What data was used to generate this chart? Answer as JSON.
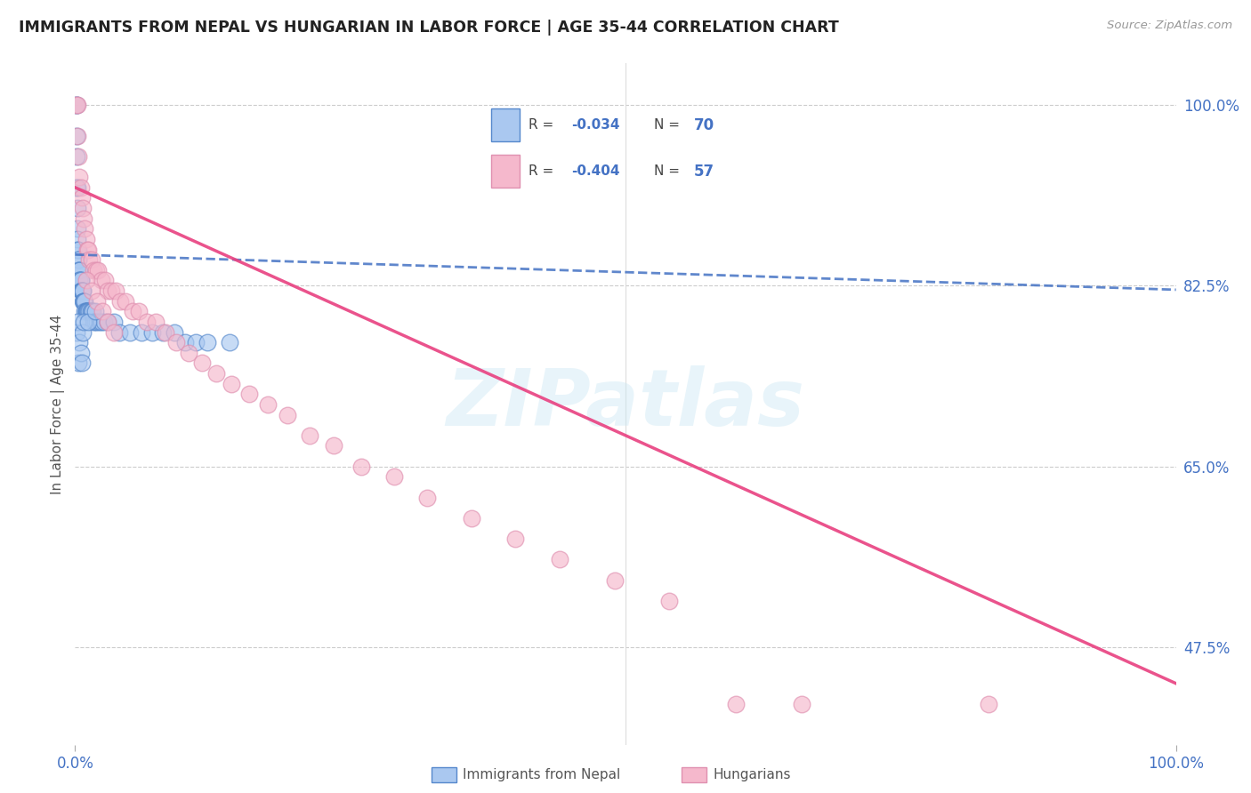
{
  "title": "IMMIGRANTS FROM NEPAL VS HUNGARIAN IN LABOR FORCE | AGE 35-44 CORRELATION CHART",
  "source": "Source: ZipAtlas.com",
  "ylabel": "In Labor Force | Age 35-44",
  "xlim": [
    0.0,
    1.0
  ],
  "ylim": [
    0.38,
    1.04
  ],
  "yticks": [
    0.475,
    0.65,
    0.825,
    1.0
  ],
  "ytick_labels": [
    "47.5%",
    "65.0%",
    "82.5%",
    "100.0%"
  ],
  "xtick_labels": [
    "0.0%",
    "100.0%"
  ],
  "xticks": [
    0.0,
    1.0
  ],
  "nepal_color": "#aac8f0",
  "hungarian_color": "#f5b8cc",
  "nepal_edge_color": "#5588cc",
  "hungarian_edge_color": "#e090b0",
  "nepal_line_color": "#4472c4",
  "hungarian_line_color": "#e84080",
  "watermark": "ZIPatlas",
  "nepal_x": [
    0.001,
    0.001,
    0.001,
    0.001,
    0.001,
    0.002,
    0.002,
    0.002,
    0.002,
    0.002,
    0.003,
    0.003,
    0.003,
    0.003,
    0.004,
    0.004,
    0.004,
    0.004,
    0.005,
    0.005,
    0.005,
    0.006,
    0.006,
    0.006,
    0.007,
    0.007,
    0.007,
    0.008,
    0.008,
    0.008,
    0.009,
    0.009,
    0.01,
    0.01,
    0.01,
    0.011,
    0.011,
    0.012,
    0.013,
    0.014,
    0.015,
    0.016,
    0.017,
    0.018,
    0.02,
    0.022,
    0.024,
    0.026,
    0.03,
    0.035,
    0.04,
    0.05,
    0.06,
    0.07,
    0.08,
    0.09,
    0.1,
    0.11,
    0.12,
    0.14,
    0.001,
    0.002,
    0.003,
    0.004,
    0.005,
    0.006,
    0.007,
    0.008,
    0.012,
    0.018
  ],
  "nepal_y": [
    1.0,
    1.0,
    0.97,
    0.95,
    0.92,
    0.92,
    0.9,
    0.88,
    0.87,
    0.86,
    0.86,
    0.85,
    0.85,
    0.84,
    0.84,
    0.84,
    0.83,
    0.83,
    0.83,
    0.83,
    0.82,
    0.82,
    0.82,
    0.82,
    0.82,
    0.82,
    0.81,
    0.81,
    0.81,
    0.81,
    0.81,
    0.8,
    0.8,
    0.8,
    0.8,
    0.8,
    0.8,
    0.8,
    0.8,
    0.8,
    0.8,
    0.8,
    0.79,
    0.79,
    0.79,
    0.79,
    0.79,
    0.79,
    0.79,
    0.79,
    0.78,
    0.78,
    0.78,
    0.78,
    0.78,
    0.78,
    0.77,
    0.77,
    0.77,
    0.77,
    0.78,
    0.79,
    0.75,
    0.77,
    0.76,
    0.75,
    0.78,
    0.79,
    0.79,
    0.8
  ],
  "hungarian_x": [
    0.001,
    0.002,
    0.002,
    0.003,
    0.004,
    0.005,
    0.006,
    0.007,
    0.008,
    0.009,
    0.01,
    0.011,
    0.012,
    0.013,
    0.015,
    0.017,
    0.019,
    0.021,
    0.024,
    0.027,
    0.03,
    0.033,
    0.037,
    0.041,
    0.046,
    0.052,
    0.058,
    0.065,
    0.073,
    0.082,
    0.092,
    0.103,
    0.115,
    0.128,
    0.142,
    0.158,
    0.175,
    0.193,
    0.213,
    0.235,
    0.26,
    0.29,
    0.32,
    0.36,
    0.4,
    0.44,
    0.49,
    0.54,
    0.01,
    0.015,
    0.02,
    0.025,
    0.03,
    0.035,
    0.6,
    0.66,
    0.83
  ],
  "hungarian_y": [
    1.0,
    1.0,
    0.97,
    0.95,
    0.93,
    0.92,
    0.91,
    0.9,
    0.89,
    0.88,
    0.87,
    0.86,
    0.86,
    0.85,
    0.85,
    0.84,
    0.84,
    0.84,
    0.83,
    0.83,
    0.82,
    0.82,
    0.82,
    0.81,
    0.81,
    0.8,
    0.8,
    0.79,
    0.79,
    0.78,
    0.77,
    0.76,
    0.75,
    0.74,
    0.73,
    0.72,
    0.71,
    0.7,
    0.68,
    0.67,
    0.65,
    0.64,
    0.62,
    0.6,
    0.58,
    0.56,
    0.54,
    0.52,
    0.83,
    0.82,
    0.81,
    0.8,
    0.79,
    0.78,
    0.42,
    0.42,
    0.42
  ],
  "nepal_trend_x": [
    0.0,
    1.0
  ],
  "nepal_trend_y": [
    0.855,
    0.821
  ],
  "hungarian_trend_x": [
    0.0,
    1.0
  ],
  "hungarian_trend_y": [
    0.92,
    0.44
  ]
}
